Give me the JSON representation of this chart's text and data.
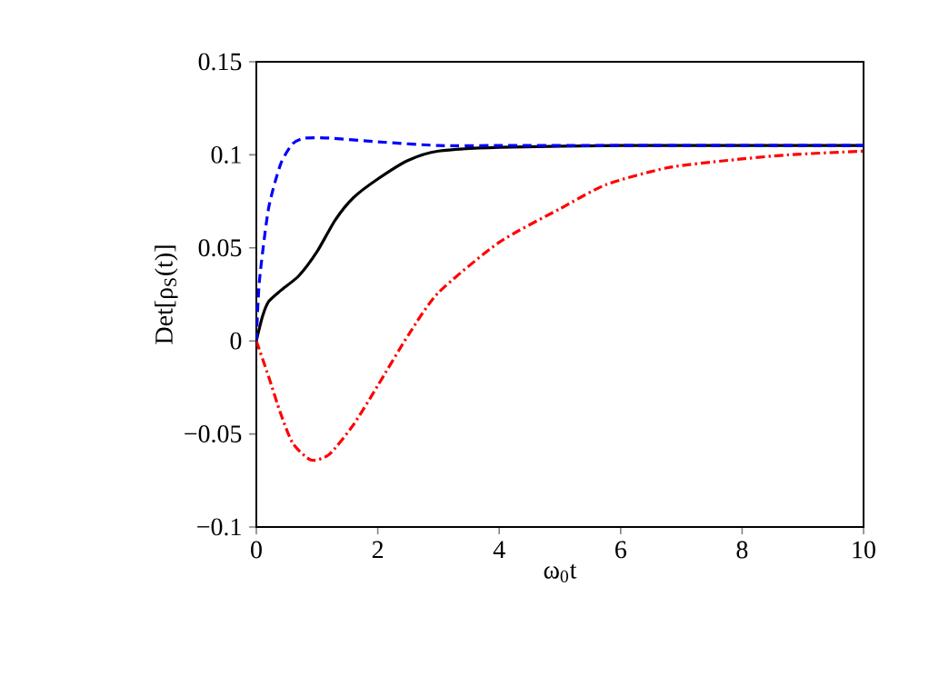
{
  "chart_data": {
    "type": "line",
    "xlabel": "ω$_{0}$t",
    "ylabel": "Det[ρ$_{S}$(t)]",
    "xlim": [
      0,
      10
    ],
    "ylim": [
      -0.1,
      0.15
    ],
    "xticks": [
      0,
      2,
      4,
      6,
      8,
      10
    ],
    "yticks": [
      {
        "value": -0.1,
        "label": "−0.1"
      },
      {
        "value": -0.05,
        "label": "−0.05"
      },
      0,
      0.05,
      0.1,
      0.15
    ],
    "grid": false,
    "legend": false,
    "marker": "none",
    "series": [
      {
        "color": "#0000ff",
        "line_style": "dashed",
        "x": [
          0,
          0.05,
          0.2,
          0.4,
          0.6,
          0.8,
          1.2,
          2,
          3,
          4,
          6,
          8,
          10
        ],
        "values": [
          0,
          0.032,
          0.071,
          0.095,
          0.106,
          0.109,
          0.109,
          0.107,
          0.105,
          0.105,
          0.105,
          0.105,
          0.105
        ]
      },
      {
        "color": "#000000",
        "line_style": "solid",
        "x": [
          0,
          0.1,
          0.2,
          0.4,
          0.7,
          1,
          1.3,
          1.6,
          2,
          2.5,
          3,
          4,
          6,
          8,
          10
        ],
        "values": [
          0,
          0.013,
          0.021,
          0.027,
          0.035,
          0.048,
          0.065,
          0.077,
          0.087,
          0.097,
          0.102,
          0.104,
          0.105,
          0.105,
          0.105
        ]
      },
      {
        "color": "#ff0000",
        "line_style": "dashdot",
        "x": [
          0,
          0.2,
          0.4,
          0.6,
          0.9,
          1.2,
          1.6,
          2,
          2.5,
          3,
          4,
          5,
          5.76,
          6.76,
          7.76,
          8.76,
          10
        ],
        "values": [
          0,
          -0.019,
          -0.039,
          -0.055,
          -0.064,
          -0.061,
          -0.045,
          -0.024,
          0.003,
          0.026,
          0.053,
          0.071,
          0.084,
          0.093,
          0.097,
          0.1,
          0.102
        ]
      }
    ]
  }
}
